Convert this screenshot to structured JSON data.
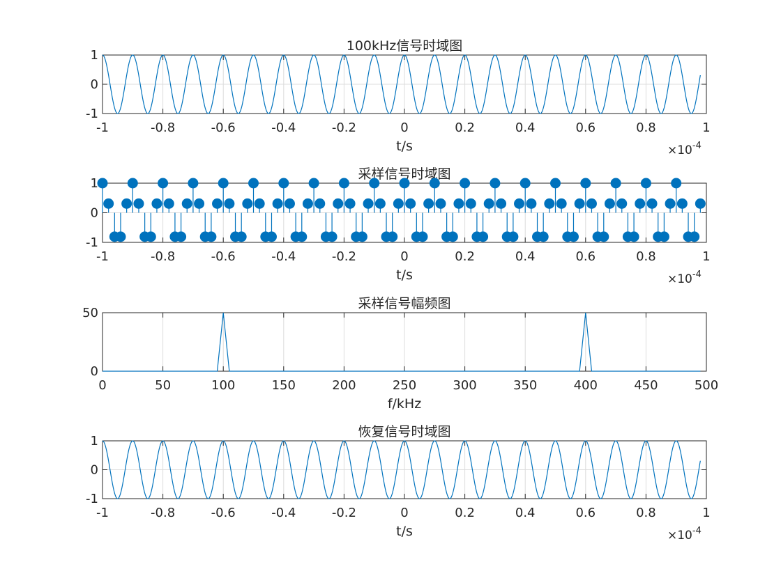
{
  "colors": {
    "series": "#0072BD",
    "axes": "#262626",
    "grid": "#dcdcdc",
    "background": "#ffffff"
  },
  "chart_data": [
    {
      "type": "line",
      "title": "100kHz信号时域图",
      "xlabel": "t/s",
      "ylabel": "",
      "x_exponent": "×10^-4",
      "xlim": [
        -0.0001,
        0.0001
      ],
      "ylim": [
        -1,
        1
      ],
      "xticks": [
        "-1",
        "-0.8",
        "-0.6",
        "-0.4",
        "-0.2",
        "0",
        "0.2",
        "0.4",
        "0.6",
        "0.8",
        "1"
      ],
      "yticks": [
        "-1",
        "0",
        "1"
      ],
      "grid": true,
      "series": [
        {
          "function": "cos(2*pi*100000*t)",
          "frequency_hz": 100000,
          "amplitude": 1,
          "t_start": -0.0001,
          "t_end": 9.8e-05
        }
      ]
    },
    {
      "type": "stem",
      "title": "采样信号时域图",
      "xlabel": "t/s",
      "ylabel": "",
      "x_exponent": "×10^-4",
      "xlim": [
        -0.0001,
        0.0001
      ],
      "ylim": [
        -1,
        1
      ],
      "xticks": [
        "-1",
        "-0.8",
        "-0.6",
        "-0.4",
        "-0.2",
        "0",
        "0.2",
        "0.4",
        "0.6",
        "0.8",
        "1"
      ],
      "yticks": [
        "-1",
        "0",
        "1"
      ],
      "grid": true,
      "series": [
        {
          "function": "cos(2*pi*100000*t)",
          "sample_interval_s": 2e-06,
          "t_start": -0.0001,
          "t_end": 9.8e-05,
          "marker": "filled-circle"
        }
      ]
    },
    {
      "type": "line",
      "title": "采样信号幅频图",
      "xlabel": "f/kHz",
      "ylabel": "",
      "x_exponent": "",
      "xlim": [
        0,
        500
      ],
      "ylim": [
        0,
        50
      ],
      "xticks": [
        "0",
        "50",
        "100",
        "150",
        "200",
        "250",
        "300",
        "350",
        "400",
        "450",
        "500"
      ],
      "yticks": [
        "0",
        "50"
      ],
      "grid": true,
      "series": [
        {
          "x": [
            0,
            95,
            100,
            105,
            395,
            400,
            405,
            495
          ],
          "y": [
            0,
            0,
            50,
            0,
            0,
            50,
            0,
            0
          ]
        }
      ]
    },
    {
      "type": "line",
      "title": "恢复信号时域图",
      "xlabel": "t/s",
      "ylabel": "",
      "x_exponent": "×10^-4",
      "xlim": [
        -0.0001,
        0.0001
      ],
      "ylim": [
        -1,
        1
      ],
      "xticks": [
        "-1",
        "-0.8",
        "-0.6",
        "-0.4",
        "-0.2",
        "0",
        "0.2",
        "0.4",
        "0.6",
        "0.8",
        "1"
      ],
      "yticks": [
        "-1",
        "0",
        "1"
      ],
      "grid": true,
      "series": [
        {
          "function": "cos(2*pi*100000*t)",
          "frequency_hz": 100000,
          "amplitude": 1,
          "t_start": -0.0001,
          "t_end": 9.8e-05
        }
      ]
    }
  ]
}
